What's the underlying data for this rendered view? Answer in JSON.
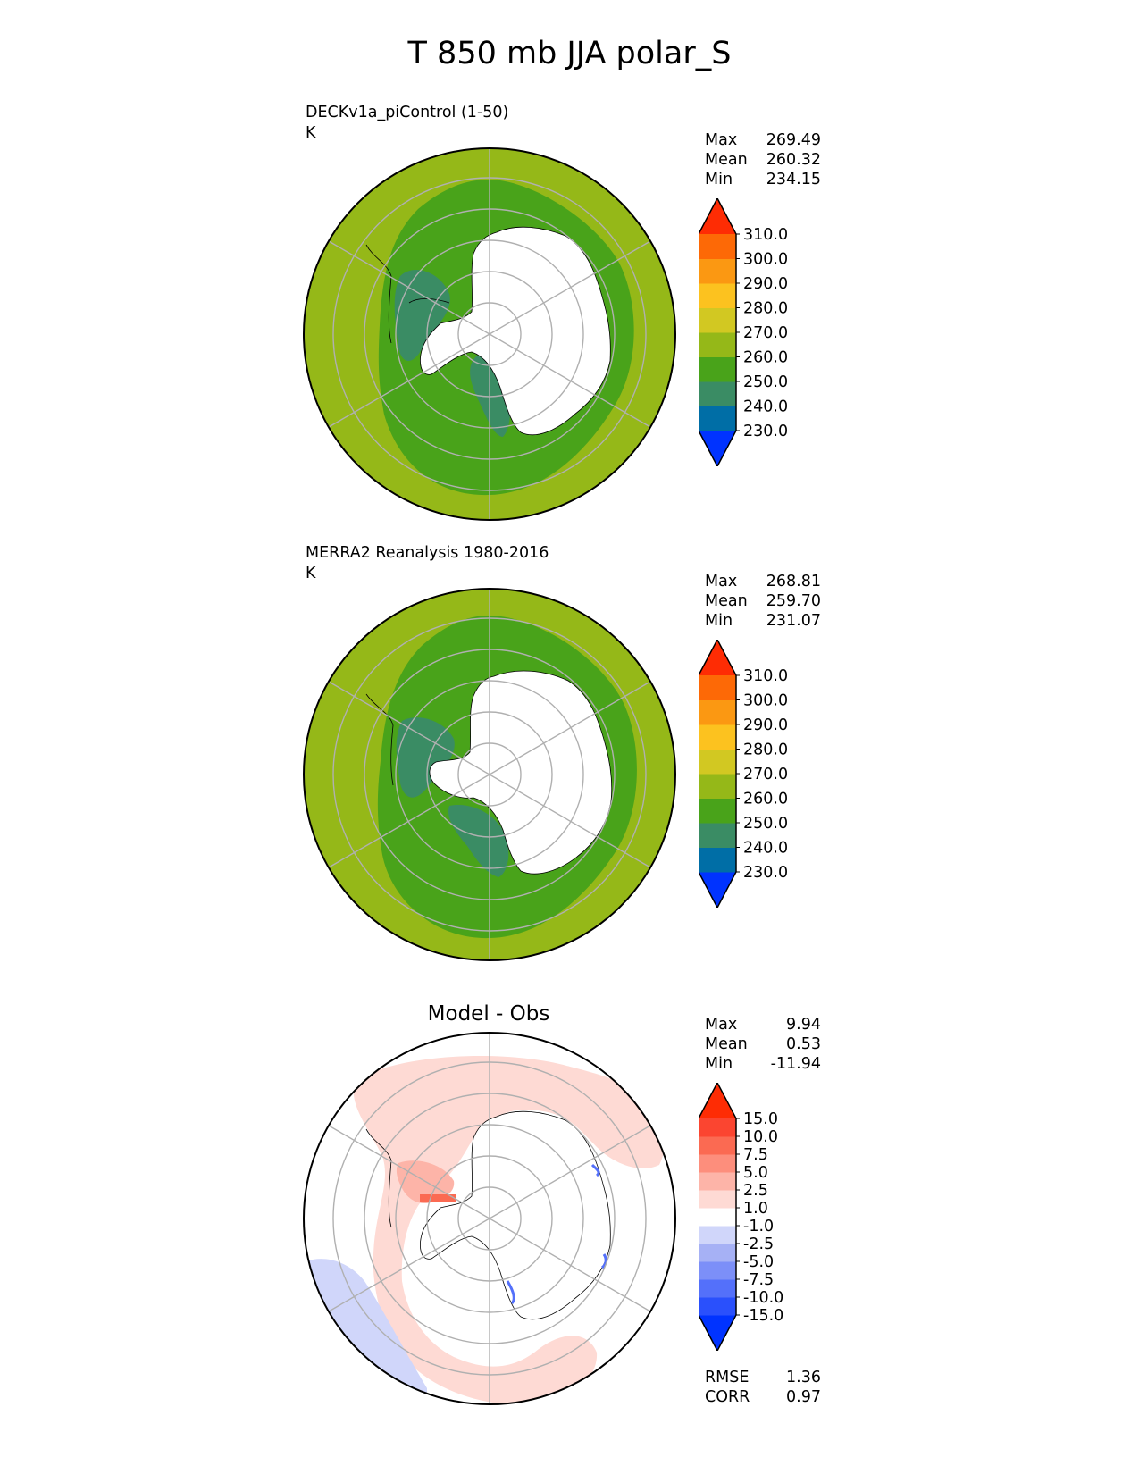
{
  "figure": {
    "title": "T 850 mb JJA polar_S"
  },
  "panels": [
    {
      "title": "DECKv1a_piControl (1-50)",
      "units": "K",
      "stats": {
        "max_label": "Max",
        "max": "269.49",
        "mean_label": "Mean",
        "mean": "260.32",
        "min_label": "Min",
        "min": "234.15"
      },
      "colorbar": {
        "colors": [
          "#0033ff",
          "#006ea6",
          "#3a8c64",
          "#49a31a",
          "#95b818",
          "#d2c822",
          "#fcc21f",
          "#fb9812",
          "#fd6906",
          "#fe2c04"
        ],
        "tick_labels": [
          "230.0",
          "240.0",
          "250.0",
          "260.0",
          "270.0",
          "280.0",
          "290.0",
          "300.0",
          "310.0"
        ]
      }
    },
    {
      "title": "MERRA2 Reanalysis 1980-2016",
      "units": "K",
      "stats": {
        "max_label": "Max",
        "max": "268.81",
        "mean_label": "Mean",
        "mean": "259.70",
        "min_label": "Min",
        "min": "231.07"
      },
      "colorbar": {
        "colors": [
          "#0033ff",
          "#006ea6",
          "#3a8c64",
          "#49a31a",
          "#95b818",
          "#d2c822",
          "#fcc21f",
          "#fb9812",
          "#fd6906",
          "#fe2c04"
        ],
        "tick_labels": [
          "230.0",
          "240.0",
          "250.0",
          "260.0",
          "270.0",
          "280.0",
          "290.0",
          "300.0",
          "310.0"
        ]
      }
    },
    {
      "title": "Model - Obs",
      "stats": {
        "max_label": "Max",
        "max": "9.94",
        "mean_label": "Mean",
        "mean": "0.53",
        "min_label": "Min",
        "min": "-11.94"
      },
      "extra_stats": {
        "rmse_label": "RMSE",
        "rmse": "1.36",
        "corr_label": "CORR",
        "corr": "0.97"
      },
      "colorbar": {
        "colors": [
          "#0033ff",
          "#2a50fc",
          "#5470fa",
          "#7c8ff8",
          "#a6b1f5",
          "#d0d6fa",
          "#ffffff",
          "#fedad4",
          "#fdb4a8",
          "#fd8e7c",
          "#fb6a52",
          "#fb4530",
          "#fe2c04"
        ],
        "tick_labels": [
          "-15.0",
          "-10.0",
          "-7.5",
          "-5.0",
          "-2.5",
          "-1.0",
          "1.0",
          "2.5",
          "5.0",
          "7.5",
          "10.0",
          "15.0"
        ]
      }
    }
  ],
  "chart_data": [
    {
      "type": "heatmap",
      "projection": "south polar stereographic",
      "title": "DECKv1a_piControl (1-50)",
      "units": "K",
      "field": "T 850 mb JJA",
      "levels": [
        230,
        240,
        250,
        260,
        270,
        280,
        290,
        300,
        310
      ],
      "extend": "both",
      "grid": true,
      "dominant_ranges": [
        {
          "region": "outer ring (northern edge of map)",
          "range": "260-270"
        },
        {
          "region": "ocean band around Antarctica",
          "range": "250-260"
        },
        {
          "region": "Ross / Weddell sea coasts",
          "range": "240-250"
        },
        {
          "region": "Antarctic continent",
          "range": "masked (below 850 mb)"
        }
      ]
    },
    {
      "type": "heatmap",
      "projection": "south polar stereographic",
      "title": "MERRA2 Reanalysis 1980-2016",
      "units": "K",
      "field": "T 850 mb JJA",
      "levels": [
        230,
        240,
        250,
        260,
        270,
        280,
        290,
        300,
        310
      ],
      "extend": "both",
      "grid": true,
      "dominant_ranges": [
        {
          "region": "outer ring (northern edge of map)",
          "range": "260-270"
        },
        {
          "region": "ocean band around Antarctica",
          "range": "250-260"
        },
        {
          "region": "Ross / Weddell sea coasts",
          "range": "240-250"
        },
        {
          "region": "Antarctic continent",
          "range": "masked (below 850 mb)"
        }
      ]
    },
    {
      "type": "heatmap",
      "projection": "south polar stereographic",
      "title": "Model - Obs",
      "levels": [
        -15,
        -10,
        -7.5,
        -5,
        -2.5,
        -1,
        1,
        2.5,
        5,
        7.5,
        10,
        15
      ],
      "extend": "both",
      "grid": true,
      "dominant_ranges": [
        {
          "region": "broad ring around Antarctica",
          "range": "1 to 2.5"
        },
        {
          "region": "most of map",
          "range": "-1 to 1"
        },
        {
          "region": "lower-left edge",
          "range": "-2.5 to -1"
        },
        {
          "region": "Weddell Sea coast",
          "range": "2.5 to 7.5"
        }
      ]
    }
  ]
}
